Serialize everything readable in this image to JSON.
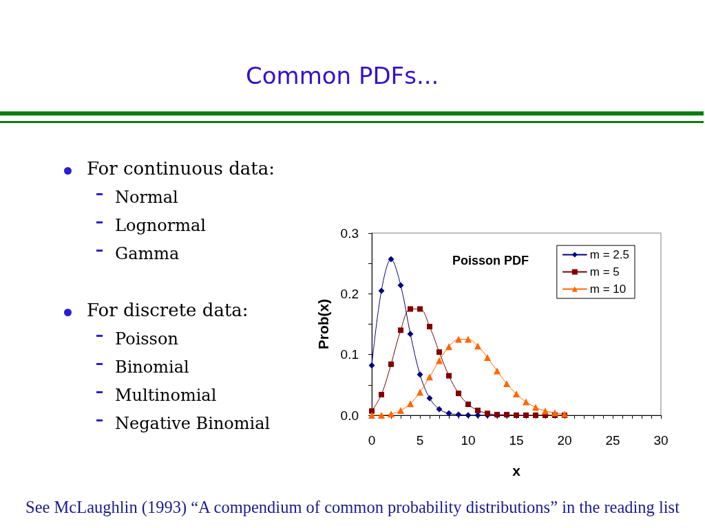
{
  "chart_data": {
    "type": "line",
    "title": "Common PDFs...",
    "subtitle": "Poisson PDF",
    "xlabel": "x",
    "ylabel": "Prob(x)",
    "x": [
      0,
      1,
      2,
      3,
      4,
      5,
      6,
      7,
      8,
      9,
      10,
      11,
      12,
      13,
      14,
      15,
      16,
      17,
      18,
      19,
      20
    ],
    "series": [
      {
        "name": "m = 2.5",
        "color": "#000080",
        "marker": "diamond",
        "values": [
          0.082,
          0.205,
          0.257,
          0.214,
          0.134,
          0.067,
          0.028,
          0.01,
          0.003,
          0.001,
          0,
          0,
          0,
          0,
          0,
          null,
          null,
          null,
          null,
          null,
          null
        ]
      },
      {
        "name": "m = 5",
        "color": "#800000",
        "marker": "square",
        "values": [
          0.007,
          0.034,
          0.084,
          0.14,
          0.175,
          0.175,
          0.146,
          0.104,
          0.065,
          0.036,
          0.018,
          0.008,
          0.003,
          0.001,
          0.001,
          0,
          0,
          0,
          0,
          0,
          0
        ]
      },
      {
        "name": "m = 10",
        "color": "#ff6600",
        "marker": "triangle",
        "values": [
          0,
          0,
          0.002,
          0.008,
          0.019,
          0.038,
          0.063,
          0.09,
          0.113,
          0.125,
          0.125,
          0.114,
          0.095,
          0.073,
          0.052,
          0.035,
          0.022,
          0.013,
          0.007,
          0.004,
          0.002
        ]
      }
    ],
    "xlim": [
      0,
      30
    ],
    "xticks": [
      0,
      {
        "value": 1,
        "label": null
      },
      {
        "value": 2,
        "label": null
      },
      {
        "value": 3,
        "label": null
      },
      {
        "value": 4,
        "label": null
      },
      5,
      {
        "value": 6,
        "label": null
      },
      {
        "value": 7,
        "label": null
      },
      {
        "value": 8,
        "label": null
      },
      {
        "value": 9,
        "label": null
      },
      10,
      {
        "value": 11,
        "label": null
      },
      {
        "value": 12,
        "label": null
      },
      {
        "value": 13,
        "label": null
      },
      {
        "value": 14,
        "label": null
      },
      15,
      {
        "value": 16,
        "label": null
      },
      {
        "value": 17,
        "label": null
      },
      {
        "value": 18,
        "label": null
      },
      {
        "value": 19,
        "label": null
      },
      20,
      {
        "value": 21,
        "label": null
      },
      {
        "value": 22,
        "label": null
      },
      {
        "value": 23,
        "label": null
      },
      {
        "value": 24,
        "label": null
      },
      25,
      {
        "value": 26,
        "label": null
      },
      {
        "value": 27,
        "label": null
      },
      {
        "value": 28,
        "label": null
      },
      {
        "value": 29,
        "label": null
      },
      30
    ],
    "ylim": [
      0,
      0.3
    ],
    "yticks": [
      {
        "value": 0,
        "label": "0.0"
      },
      {
        "value": 0.05,
        "label": null
      },
      0.1,
      {
        "value": 0.15,
        "label": null
      },
      0.2,
      {
        "value": 0.25,
        "label": null
      },
      0.3
    ],
    "grid": false,
    "legend": "top right",
    "line_style": "solid",
    "annotations": [
      "For continuous data:",
      "Normal",
      "Lognormal",
      "Gamma",
      "For discrete data:",
      "Poisson",
      "Binomial",
      "Multinomial",
      "Negative Binomial",
      "See McLaughlin (1993) “A compendium of common probability distributions” in the reading list"
    ]
  }
}
